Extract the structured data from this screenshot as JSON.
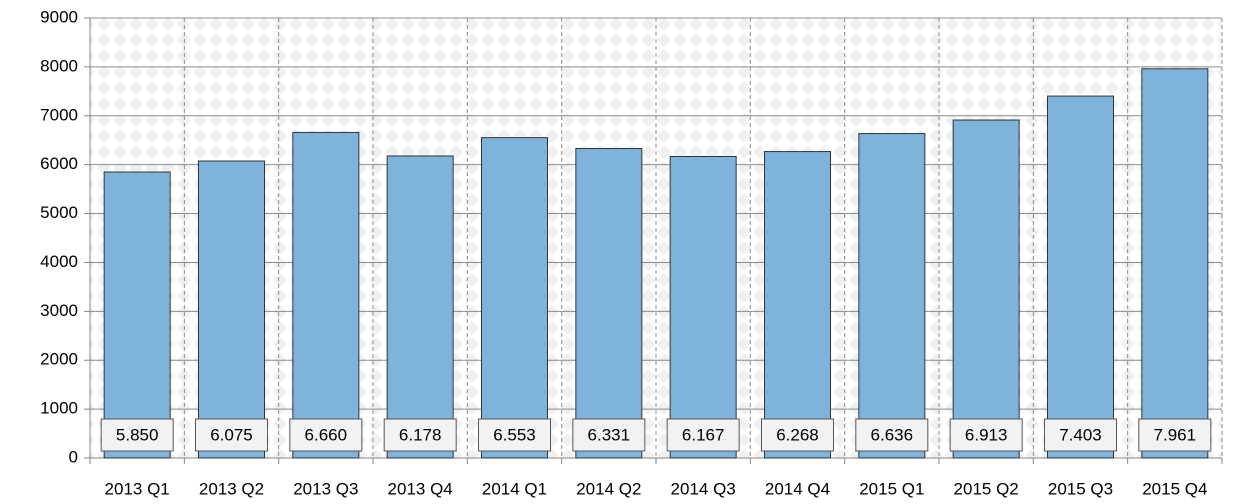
{
  "chart_data": {
    "type": "bar",
    "categories": [
      "2013 Q1",
      "2013 Q2",
      "2013 Q3",
      "2013 Q4",
      "2014 Q1",
      "2014 Q2",
      "2014 Q3",
      "2014 Q4",
      "2015 Q1",
      "2015 Q2",
      "2015 Q3",
      "2015 Q4"
    ],
    "values": [
      5850,
      6075,
      6660,
      6178,
      6553,
      6331,
      6167,
      6268,
      6636,
      6913,
      7403,
      7961
    ],
    "value_labels": [
      "5.850",
      "6.075",
      "6.660",
      "6.178",
      "6.553",
      "6.331",
      "6.167",
      "6.268",
      "6.636",
      "6.913",
      "7.403",
      "7.961"
    ],
    "color": "#7eb4dc",
    "ylim": [
      0,
      9000
    ],
    "yticks": [
      0,
      1000,
      2000,
      3000,
      4000,
      5000,
      6000,
      7000,
      8000,
      9000
    ],
    "grid": true
  }
}
